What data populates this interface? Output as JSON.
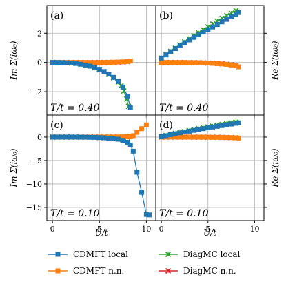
{
  "chart_data": {
    "type": "line",
    "xlabel": "U/t",
    "x_ticks": [
      0,
      5,
      10
    ],
    "xlim": [
      -0.6,
      11
    ],
    "colors": {
      "cdmft_local": "#1f77b4",
      "cdmft_nn": "#ff7f0e",
      "diagmc_local": "#2ca02c",
      "diagmc_nn": "#d62728"
    },
    "legend": {
      "placement": "bottom",
      "entries": [
        {
          "key": "cdmft_local",
          "label": "CDMFT local",
          "marker": "square"
        },
        {
          "key": "cdmft_nn",
          "label": "CDMFT n.n.",
          "marker": "square"
        },
        {
          "key": "diagmc_local",
          "label": "DiagMC local",
          "marker": "x-errorbar"
        },
        {
          "key": "diagmc_nn",
          "label": "DiagMC n.n.",
          "marker": "x-errorbar"
        }
      ]
    },
    "panels": [
      {
        "id": "a",
        "label": "(a)",
        "temp": "T/t = 0.40",
        "ylabel": "Im Σ(iω₀)",
        "ylabel_side": "left",
        "ylim": [
          -3.6,
          3.9
        ],
        "y_ticks": [
          -2,
          0,
          2
        ],
        "show_x_ticklabels": false,
        "series": [
          {
            "key": "cdmft_local",
            "x": [
              0,
              0.5,
              1,
              1.5,
              2,
              2.5,
              3,
              3.5,
              4,
              4.5,
              5,
              5.5,
              6,
              6.5,
              7,
              7.5,
              8,
              8.3
            ],
            "y": [
              0,
              -0.002,
              -0.01,
              -0.02,
              -0.04,
              -0.07,
              -0.12,
              -0.18,
              -0.25,
              -0.35,
              -0.47,
              -0.62,
              -0.8,
              -1.02,
              -1.3,
              -1.68,
              -2.3,
              -3.1
            ]
          },
          {
            "key": "cdmft_nn",
            "x": [
              0,
              0.5,
              1,
              1.5,
              2,
              2.5,
              3,
              3.5,
              4,
              4.5,
              5,
              5.5,
              6,
              6.5,
              7,
              7.5,
              8,
              8.3
            ],
            "y": [
              0,
              0,
              0,
              0,
              0,
              0,
              0,
              0,
              0,
              0,
              0,
              0.003,
              0.008,
              0.015,
              0.025,
              0.04,
              0.06,
              0.1
            ]
          },
          {
            "key": "diagmc_local",
            "x": [
              0,
              0.5,
              1,
              1.5,
              2,
              2.5,
              3,
              3.5,
              4,
              4.5,
              5,
              5.5,
              6,
              6.5,
              7,
              7.3,
              7.6,
              7.9,
              8.1
            ],
            "y": [
              0,
              -0.002,
              -0.01,
              -0.02,
              -0.04,
              -0.07,
              -0.12,
              -0.18,
              -0.26,
              -0.36,
              -0.48,
              -0.63,
              -0.82,
              -1.05,
              -1.35,
              -1.6,
              -1.95,
              -2.5,
              -3.0
            ]
          },
          {
            "key": "diagmc_nn",
            "x": [
              0,
              0.5,
              1,
              1.5,
              2,
              2.5,
              3,
              3.5,
              4,
              4.5,
              5,
              5.5,
              6,
              6.5,
              7,
              7.5,
              8
            ],
            "y": [
              0,
              0,
              0,
              0,
              0,
              0,
              0,
              0,
              0,
              0,
              0,
              0.003,
              0.006,
              0.012,
              0.02,
              0.03,
              0.05
            ]
          }
        ]
      },
      {
        "id": "b",
        "label": "(b)",
        "temp": "T/t = 0.40",
        "ylabel": "Re Σ(iω₀)",
        "ylabel_side": "right",
        "ylim": [
          -3.6,
          3.9
        ],
        "y_ticks": [
          -2,
          0,
          2
        ],
        "show_x_ticklabels": false,
        "series": [
          {
            "key": "cdmft_local",
            "x": [
              0,
              0.5,
              1,
              1.5,
              2,
              2.5,
              3,
              3.5,
              4,
              4.5,
              5,
              5.5,
              6,
              6.5,
              7,
              7.5,
              8,
              8.3
            ],
            "y": [
              0.3,
              0.52,
              0.74,
              0.95,
              1.15,
              1.35,
              1.54,
              1.72,
              1.9,
              2.08,
              2.25,
              2.43,
              2.6,
              2.78,
              2.95,
              3.12,
              3.3,
              3.42
            ]
          },
          {
            "key": "cdmft_nn",
            "x": [
              0,
              0.5,
              1,
              1.5,
              2,
              2.5,
              3,
              3.5,
              4,
              4.5,
              5,
              5.5,
              6,
              6.5,
              7,
              7.5,
              8,
              8.3
            ],
            "y": [
              0,
              0,
              0,
              0,
              0,
              0,
              -0.01,
              -0.01,
              -0.02,
              -0.03,
              -0.04,
              -0.06,
              -0.08,
              -0.1,
              -0.13,
              -0.17,
              -0.22,
              -0.3
            ]
          },
          {
            "key": "diagmc_local",
            "x": [
              0,
              0.5,
              1,
              1.5,
              2,
              2.5,
              3,
              3.5,
              4,
              4.5,
              5,
              5.5,
              6,
              6.5,
              7,
              7.5,
              8
            ],
            "y": [
              0.3,
              0.53,
              0.76,
              0.98,
              1.2,
              1.41,
              1.62,
              1.83,
              2.03,
              2.23,
              2.43,
              2.63,
              2.83,
              3.02,
              3.2,
              3.38,
              3.55
            ]
          },
          {
            "key": "diagmc_nn",
            "x": [
              0,
              0.5,
              1,
              1.5,
              2,
              2.5,
              3,
              3.5,
              4,
              4.5,
              5,
              5.5,
              6,
              6.5,
              7,
              7.5,
              8
            ],
            "y": [
              0,
              0,
              0,
              0,
              0,
              0,
              -0.01,
              -0.01,
              -0.02,
              -0.03,
              -0.04,
              -0.05,
              -0.07,
              -0.09,
              -0.12,
              -0.15,
              -0.2
            ]
          }
        ]
      },
      {
        "id": "c",
        "label": "(c)",
        "temp": "T/t = 0.10",
        "ylabel": "Im Σ(iω₀)",
        "ylabel_side": "left",
        "ylim": [
          -17.8,
          4.7
        ],
        "y_ticks": [
          -15,
          -10,
          -5,
          0
        ],
        "show_x_ticklabels": true,
        "series": [
          {
            "key": "cdmft_local",
            "x": [
              0,
              0.5,
              1,
              1.5,
              2,
              2.5,
              3,
              3.5,
              4,
              4.5,
              5,
              5.5,
              6,
              6.5,
              7,
              7.5,
              8,
              8.3,
              8.6,
              9,
              9.5,
              10,
              10.3
            ],
            "y": [
              0,
              0,
              0,
              0,
              0,
              0,
              -0.01,
              -0.02,
              -0.04,
              -0.06,
              -0.1,
              -0.15,
              -0.22,
              -0.32,
              -0.45,
              -0.7,
              -1.1,
              -1.7,
              -3.0,
              -7.5,
              -11.8,
              -16.5,
              -16.6
            ]
          },
          {
            "key": "cdmft_nn",
            "x": [
              0,
              0.5,
              1,
              1.5,
              2,
              2.5,
              3,
              3.5,
              4,
              4.5,
              5,
              5.5,
              6,
              6.5,
              7,
              7.5,
              8,
              8.3,
              8.6,
              9,
              9.5,
              10
            ],
            "y": [
              0,
              0,
              0,
              0,
              0,
              0,
              0,
              0,
              0,
              0,
              0,
              0,
              0,
              0.01,
              0.02,
              0.04,
              0.08,
              0.15,
              0.3,
              1.0,
              1.8,
              2.6
            ]
          },
          {
            "key": "diagmc_local",
            "x": [
              0,
              0.5,
              1,
              1.5,
              2,
              2.5,
              3,
              3.5,
              4,
              4.5,
              5,
              5.5,
              6,
              6.5,
              7,
              7.5,
              8
            ],
            "y": [
              0,
              0,
              0,
              0,
              0,
              0,
              -0.01,
              -0.02,
              -0.04,
              -0.06,
              -0.1,
              -0.15,
              -0.22,
              -0.32,
              -0.48,
              -0.7,
              -1.0
            ]
          },
          {
            "key": "diagmc_nn",
            "x": [
              0,
              0.5,
              1,
              1.5,
              2,
              2.5,
              3,
              3.5,
              4,
              4.5,
              5,
              5.5,
              6,
              6.5,
              7,
              7.5,
              8
            ],
            "y": [
              0,
              0,
              0,
              0,
              0,
              0,
              0,
              0,
              0,
              0,
              0,
              0,
              0,
              0.01,
              0.02,
              0.03,
              0.04
            ]
          }
        ]
      },
      {
        "id": "d",
        "label": "(d)",
        "temp": "T/t = 0.10",
        "ylabel": "Re Σ(iω₀)",
        "ylabel_side": "right",
        "ylim": [
          -17.8,
          4.7
        ],
        "y_ticks": [
          -15,
          -10,
          -5,
          0
        ],
        "show_x_ticklabels": true,
        "series": [
          {
            "key": "cdmft_local",
            "x": [
              0,
              0.5,
              1,
              1.5,
              2,
              2.5,
              3,
              3.5,
              4,
              4.5,
              5,
              5.5,
              6,
              6.5,
              7,
              7.5,
              8,
              8.3
            ],
            "y": [
              0.1,
              0.3,
              0.5,
              0.7,
              0.9,
              1.08,
              1.26,
              1.44,
              1.62,
              1.8,
              1.97,
              2.14,
              2.3,
              2.46,
              2.62,
              2.78,
              2.94,
              3.05
            ]
          },
          {
            "key": "cdmft_nn",
            "x": [
              0,
              0.5,
              1,
              1.5,
              2,
              2.5,
              3,
              3.5,
              4,
              4.5,
              5,
              5.5,
              6,
              6.5,
              7,
              7.5,
              8,
              8.3
            ],
            "y": [
              0,
              0,
              0,
              0,
              0,
              0,
              0,
              -0.01,
              -0.01,
              -0.02,
              -0.03,
              -0.04,
              -0.05,
              -0.07,
              -0.09,
              -0.12,
              -0.15,
              -0.2
            ]
          },
          {
            "key": "diagmc_local",
            "x": [
              0,
              0.5,
              1,
              1.5,
              2,
              2.5,
              3,
              3.5,
              4,
              4.5,
              5,
              5.5,
              6,
              6.5,
              7,
              7.5,
              8
            ],
            "y": [
              0.1,
              0.35,
              0.58,
              0.8,
              1.0,
              1.2,
              1.4,
              1.6,
              1.8,
              1.98,
              2.16,
              2.34,
              2.52,
              2.7,
              2.88,
              3.05,
              3.22
            ]
          },
          {
            "key": "diagmc_nn",
            "x": [
              0,
              0.5,
              1,
              1.5,
              2,
              2.5,
              3,
              3.5,
              4,
              4.5,
              5,
              5.5,
              6,
              6.5,
              7,
              7.5,
              8
            ],
            "y": [
              0,
              0,
              0,
              0,
              0,
              0,
              0,
              -0.01,
              -0.01,
              -0.02,
              -0.03,
              -0.04,
              -0.05,
              -0.06,
              -0.08,
              -0.1,
              -0.13
            ]
          }
        ]
      }
    ]
  }
}
